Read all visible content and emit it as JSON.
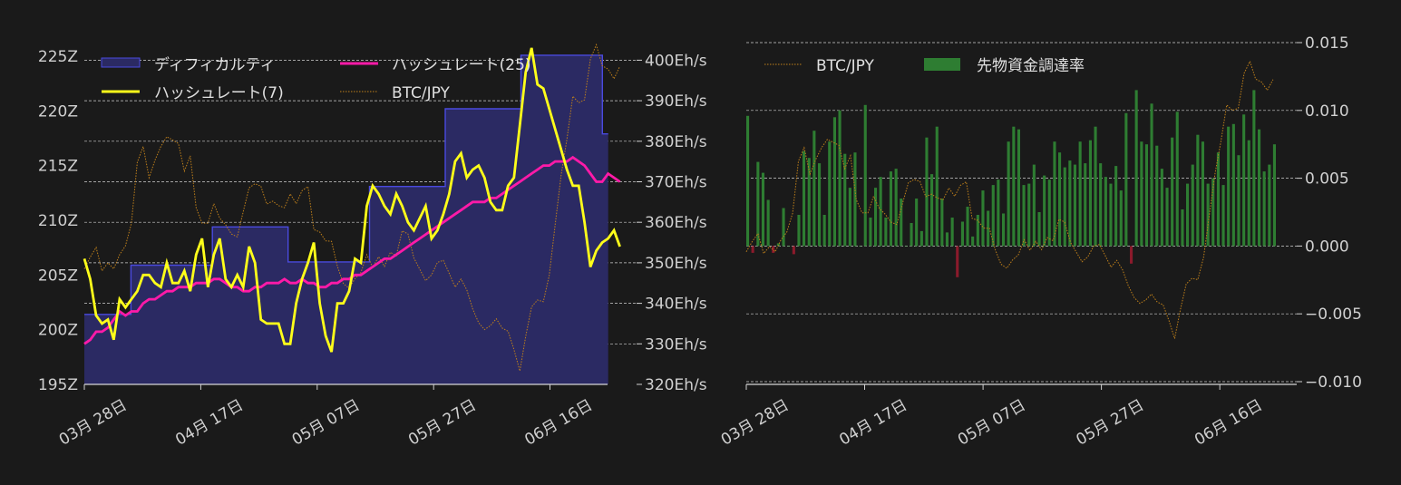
{
  "chart_data": [
    {
      "type": "line",
      "x_tick_labels": [
        "03月 28日",
        "04月 17日",
        "05月 07日",
        "05月 27日",
        "06月 16日"
      ],
      "y_left_tick_labels": [
        "195Z",
        "200Z",
        "205Z",
        "210Z",
        "215Z",
        "220Z",
        "225Z"
      ],
      "y_left_ticks": [
        195,
        200,
        205,
        210,
        215,
        220,
        225
      ],
      "ylim_left": [
        195,
        226.5
      ],
      "y_right_tick_labels": [
        "320Eh/s",
        "330Eh/s",
        "340Eh/s",
        "350Eh/s",
        "360Eh/s",
        "370Eh/s",
        "380Eh/s",
        "390Eh/s",
        "400Eh/s"
      ],
      "y_right_ticks": [
        320,
        330,
        340,
        350,
        360,
        370,
        380,
        390,
        400
      ],
      "ylim_right": [
        320,
        405
      ],
      "x_range_days": [
        0,
        93
      ],
      "x_tick_days": [
        0,
        20,
        40,
        60,
        80
      ],
      "grid": true,
      "legend": {
        "difficulty": "ディフィカルティ",
        "hashrate25": "ハッシュレート(25)",
        "hashrate7": "ハッシュレート(7)",
        "btcjpy": "BTC/JPY"
      },
      "colors": {
        "difficulty_fill": "#2b2a63",
        "difficulty_line": "#4a4adf",
        "hashrate7": "#ffff1a",
        "hashrate25": "#ff1aa8",
        "btcjpy": "#c0801a"
      },
      "difficulty_steps": [
        {
          "start": 0,
          "end": 8,
          "value": 201.4
        },
        {
          "start": 8,
          "end": 22,
          "value": 205.9
        },
        {
          "start": 22,
          "end": 35,
          "value": 209.4
        },
        {
          "start": 35,
          "end": 49,
          "value": 206.2
        },
        {
          "start": 49,
          "end": 62,
          "value": 213.1
        },
        {
          "start": 62,
          "end": 75,
          "value": 220.2
        },
        {
          "start": 75,
          "end": 89,
          "value": 225.1
        },
        {
          "start": 89,
          "end": 90,
          "value": 217.9
        }
      ],
      "hashrate7": [
        351,
        346,
        337,
        335,
        336,
        331,
        341,
        339,
        341,
        343,
        347,
        347,
        345,
        344,
        350,
        345,
        345,
        348,
        343,
        352,
        356,
        344,
        352,
        356,
        346,
        344,
        347,
        344,
        354,
        350,
        336,
        335,
        335,
        335,
        330,
        330,
        340,
        346,
        350,
        355,
        340,
        332,
        328,
        340,
        340,
        343,
        351,
        350,
        364,
        369,
        367,
        364,
        362,
        367,
        364,
        360,
        358,
        361,
        364,
        356,
        358,
        362,
        367,
        375,
        377,
        371,
        373,
        374,
        371,
        365,
        363,
        363,
        369,
        371,
        384,
        397,
        403,
        394,
        393,
        388,
        383,
        378,
        373,
        369,
        369,
        360,
        349,
        353,
        355,
        356,
        358,
        354
      ],
      "hashrate25": [
        330,
        331,
        333,
        333,
        334,
        336,
        338,
        337,
        338,
        338,
        340,
        341,
        341,
        342,
        343,
        343,
        344,
        344,
        344,
        345,
        345,
        345,
        346,
        346,
        345,
        344,
        344,
        343,
        343,
        344,
        344,
        345,
        345,
        345,
        346,
        345,
        345,
        346,
        345,
        345,
        344,
        344,
        345,
        345,
        346,
        346,
        347,
        347,
        348,
        349,
        350,
        351,
        351,
        352,
        353,
        354,
        355,
        356,
        357,
        358,
        359,
        360,
        361,
        362,
        363,
        364,
        365,
        365,
        365,
        366,
        366,
        367,
        368,
        369,
        370,
        371,
        372,
        373,
        374,
        374,
        375,
        375,
        375,
        376,
        375,
        374,
        372,
        370,
        370,
        372,
        371,
        370
      ],
      "btcjpy": [
        348.5,
        351.4,
        353.8,
        348.0,
        350.0,
        348.5,
        352.0,
        354.2,
        359.7,
        374.8,
        378.7,
        371.0,
        375.3,
        378.7,
        381.1,
        380.3,
        379.4,
        372.6,
        376.4,
        363.6,
        359.8,
        359.8,
        364.6,
        361.0,
        359.4,
        357.1,
        356.4,
        362.6,
        368.5,
        369.5,
        368.9,
        364.5,
        365.2,
        364.1,
        363.6,
        367.0,
        364.6,
        367.8,
        368.8,
        358.2,
        357.6,
        355.4,
        355.3,
        349.1,
        344.9,
        343.7,
        346.1,
        347.6,
        352.0,
        348.9,
        351.5,
        349.1,
        352.6,
        351.7,
        357.9,
        357.1,
        351.2,
        348.4,
        345.6,
        347.0,
        350.1,
        350.6,
        347.4,
        344.0,
        346.0,
        343.3,
        338.6,
        335.2,
        333.5,
        334.5,
        336.2,
        333.9,
        333.1,
        328.6,
        323.3,
        331.8,
        339.1,
        340.8,
        340.4,
        346.9,
        359.3,
        371.5,
        380.5,
        391.1,
        389.5,
        390.2,
        400.3,
        403.8,
        398.6,
        397.8,
        395.4,
        398.5
      ]
    },
    {
      "type": "bar",
      "x_tick_labels": [
        "03月 28日",
        "04月 17日",
        "05月 07日",
        "05月 27日",
        "06月 16日"
      ],
      "y_right_tick_labels": [
        "0.015",
        "0.010",
        "0.005",
        "0.000",
        "−0.005",
        "−0.010"
      ],
      "y_right_ticks": [
        0.015,
        0.01,
        0.005,
        0.0,
        -0.005,
        -0.01
      ],
      "ylim": [
        -0.0102,
        0.0152
      ],
      "x_range_days": [
        0,
        93
      ],
      "x_tick_days": [
        0,
        20,
        40,
        60,
        80
      ],
      "grid": true,
      "legend": {
        "btcjpy": "BTC/JPY",
        "funding": "先物資金調達率"
      },
      "colors": {
        "positive": "#2e7d32",
        "negative": "#8b1a2b",
        "btcjpy": "#c0801a"
      },
      "funding_rate": [
        0.0096,
        -0.0005,
        0.0062,
        0.0054,
        0.0034,
        -0.0005,
        0.0002,
        0.0028,
        0.0,
        -0.0006,
        0.0023,
        0.007,
        0.0065,
        0.0085,
        0.0061,
        0.0023,
        0.0077,
        0.0095,
        0.01,
        0.0068,
        0.0043,
        0.0069,
        0.0,
        0.0104,
        0.0021,
        0.0043,
        0.0051,
        0.0021,
        0.0055,
        0.0057,
        0.0035,
        0.0,
        0.0017,
        0.0035,
        0.0011,
        0.008,
        0.0053,
        0.0088,
        0.0035,
        0.001,
        0.0021,
        -0.0023,
        0.0018,
        0.0029,
        0.0007,
        0.0023,
        0.0041,
        0.0026,
        0.0045,
        0.0049,
        0.0024,
        0.0077,
        0.0088,
        0.0086,
        0.0045,
        0.0046,
        0.006,
        0.0025,
        0.0052,
        0.0049,
        0.0077,
        0.0069,
        0.0058,
        0.0063,
        0.006,
        0.0077,
        0.0061,
        0.0078,
        0.0088,
        0.0061,
        0.0051,
        0.0046,
        0.0059,
        0.0041,
        0.0098,
        -0.0013,
        0.0115,
        0.0077,
        0.0075,
        0.0105,
        0.0074,
        0.0057,
        0.0043,
        0.008,
        0.0099,
        0.0027,
        0.0046,
        0.006,
        0.0082,
        0.0077,
        0.0046,
        0.005,
        0.0069,
        0.0045,
        0.0088,
        0.009,
        0.0067,
        0.0097,
        0.0078,
        0.0115,
        0.0086,
        0.0055,
        0.006,
        0.0075
      ],
      "btcjpy": [
        348.5,
        351.4,
        353.8,
        348.0,
        350.0,
        348.5,
        352.0,
        354.2,
        359.7,
        374.8,
        378.7,
        371.0,
        375.3,
        378.7,
        381.1,
        380.3,
        379.4,
        372.6,
        376.4,
        363.6,
        359.8,
        359.8,
        364.6,
        361.0,
        359.4,
        357.1,
        356.4,
        362.6,
        368.5,
        369.5,
        368.9,
        364.5,
        365.2,
        364.1,
        363.6,
        367.0,
        364.6,
        367.8,
        368.8,
        358.2,
        357.6,
        355.4,
        355.3,
        349.1,
        344.9,
        343.7,
        346.1,
        347.6,
        352.0,
        348.9,
        351.5,
        349.1,
        352.6,
        351.7,
        357.9,
        357.1,
        351.2,
        348.4,
        345.6,
        347.0,
        350.1,
        350.6,
        347.4,
        344.0,
        346.0,
        343.3,
        338.6,
        335.2,
        333.5,
        334.5,
        336.2,
        333.9,
        333.1,
        328.6,
        323.3,
        331.8,
        339.1,
        340.8,
        340.4,
        346.9,
        359.3,
        371.5,
        380.5,
        391.1,
        389.5,
        390.2,
        400.3,
        403.8,
        398.6,
        397.8,
        395.4,
        398.5
      ]
    }
  ]
}
